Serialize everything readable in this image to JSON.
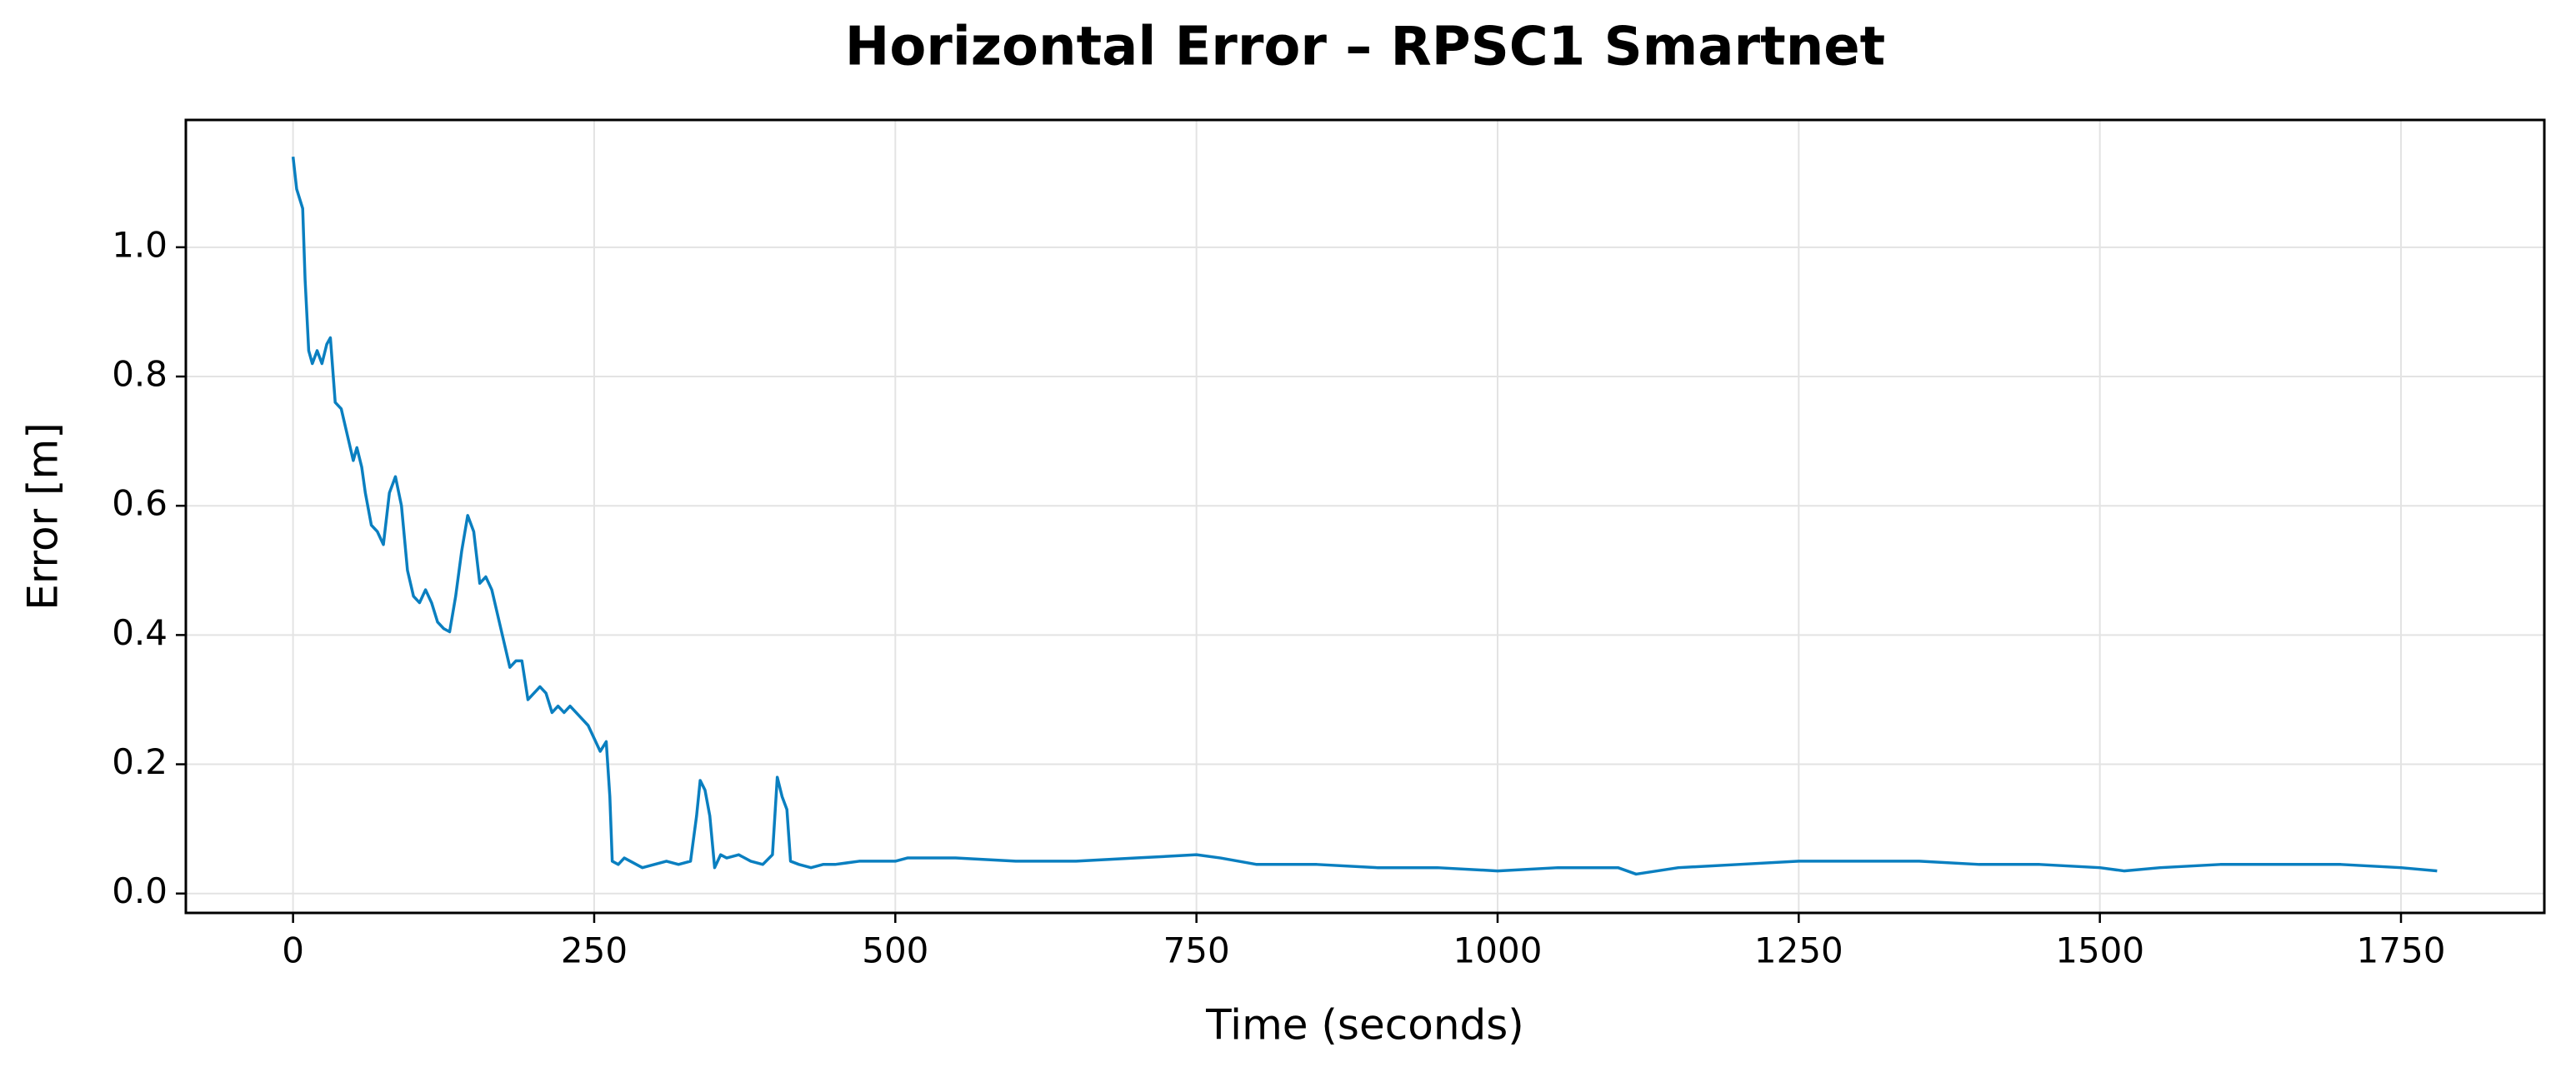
{
  "chart_data": {
    "type": "line",
    "title": "Horizontal Error – RPSC1 Smartnet",
    "xlabel": "Time (seconds)",
    "ylabel": "Error [m]",
    "xlim": [
      -89,
      1869
    ],
    "ylim": [
      -0.03,
      1.197
    ],
    "xticks": [
      0,
      250,
      500,
      750,
      1000,
      1250,
      1500,
      1750
    ],
    "yticks": [
      {
        "value": 0,
        "label": "0.0"
      },
      0.2,
      0.4,
      0.6,
      0.8,
      {
        "value": 1,
        "label": "1.0"
      }
    ],
    "grid": true,
    "x": [
      0,
      3,
      8,
      10,
      13,
      16,
      20,
      24,
      28,
      31,
      35,
      40,
      45,
      50,
      53,
      57,
      60,
      65,
      70,
      75,
      80,
      85,
      90,
      95,
      100,
      105,
      110,
      115,
      120,
      125,
      130,
      135,
      140,
      145,
      150,
      155,
      160,
      165,
      170,
      175,
      180,
      185,
      190,
      195,
      200,
      205,
      210,
      215,
      220,
      225,
      230,
      240,
      245,
      250,
      255,
      260,
      263,
      265,
      270,
      275,
      280,
      290,
      300,
      310,
      320,
      330,
      335,
      338,
      342,
      346,
      350,
      355,
      360,
      370,
      380,
      390,
      398,
      402,
      406,
      410,
      413,
      420,
      430,
      440,
      450,
      470,
      500,
      510,
      550,
      600,
      650,
      700,
      750,
      770,
      800,
      850,
      900,
      950,
      1000,
      1050,
      1100,
      1115,
      1150,
      1200,
      1250,
      1300,
      1350,
      1400,
      1450,
      1500,
      1520,
      1550,
      1600,
      1650,
      1700,
      1750,
      1780
    ],
    "series": [
      {
        "color": "#0a7fc0",
        "values": [
          1.14,
          1.09,
          1.06,
          0.95,
          0.84,
          0.82,
          0.84,
          0.82,
          0.85,
          0.86,
          0.76,
          0.75,
          0.71,
          0.67,
          0.69,
          0.66,
          0.62,
          0.57,
          0.56,
          0.54,
          0.62,
          0.645,
          0.6,
          0.5,
          0.46,
          0.45,
          0.47,
          0.45,
          0.42,
          0.41,
          0.405,
          0.46,
          0.53,
          0.585,
          0.56,
          0.48,
          0.49,
          0.47,
          0.43,
          0.39,
          0.35,
          0.36,
          0.36,
          0.3,
          0.31,
          0.32,
          0.31,
          0.28,
          0.29,
          0.28,
          0.29,
          0.27,
          0.26,
          0.24,
          0.22,
          0.235,
          0.15,
          0.05,
          0.045,
          0.055,
          0.05,
          0.04,
          0.045,
          0.05,
          0.045,
          0.05,
          0.12,
          0.175,
          0.16,
          0.12,
          0.04,
          0.06,
          0.055,
          0.06,
          0.05,
          0.045,
          0.06,
          0.18,
          0.15,
          0.13,
          0.05,
          0.045,
          0.04,
          0.045,
          0.045,
          0.05,
          0.05,
          0.055,
          0.055,
          0.05,
          0.05,
          0.055,
          0.06,
          0.055,
          0.045,
          0.045,
          0.04,
          0.04,
          0.035,
          0.04,
          0.04,
          0.03,
          0.04,
          0.045,
          0.05,
          0.05,
          0.05,
          0.045,
          0.045,
          0.04,
          0.035,
          0.04,
          0.045,
          0.045,
          0.045,
          0.04,
          0.035
        ]
      }
    ]
  }
}
